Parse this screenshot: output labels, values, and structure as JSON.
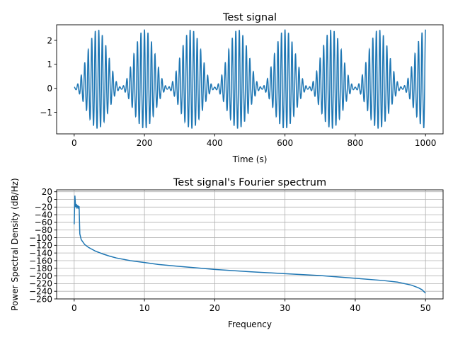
{
  "chart_data": [
    {
      "type": "line",
      "title": "Test signal",
      "xlabel": "Time (s)",
      "ylabel": "",
      "xlim": [
        -50,
        1050
      ],
      "ylim": [
        -1.9,
        2.65
      ],
      "xticks": [
        0,
        200,
        400,
        600,
        800,
        1000
      ],
      "yticks": [
        -1,
        0,
        1,
        2
      ],
      "ytick_labels": [
        "−1",
        "0",
        "1",
        "2"
      ],
      "grid": false,
      "line_color": "#1f77b4",
      "series": [
        {
          "x": [
            0,
            1000
          ],
          "description_values": {
            "carrier_period_s": 10,
            "envelope_period_s": 133.3,
            "envelope_max": 2.45,
            "envelope_min": 0.05,
            "trough_min": -1.68
          }
        }
      ]
    },
    {
      "type": "line",
      "title": "Test signal's Fourier spectrum",
      "xlabel": "Frequency",
      "ylabel": "Power Spectral Density (dB/Hz)",
      "xlim": [
        -2.5,
        52.5
      ],
      "ylim": [
        -260,
        25
      ],
      "xticks": [
        0,
        10,
        20,
        30,
        40,
        50
      ],
      "yticks": [
        -260,
        -240,
        -220,
        -200,
        -180,
        -160,
        -140,
        -120,
        -100,
        -80,
        -60,
        -40,
        -20,
        0,
        20
      ],
      "ytick_labels": [
        "−260",
        "−240",
        "−220",
        "−200",
        "−180",
        "−160",
        "−140",
        "−120",
        "−100",
        "−80",
        "−60",
        "−40",
        "−20",
        "0",
        "20"
      ],
      "grid": true,
      "line_color": "#1f77b4",
      "series": [
        {
          "x": [
            0,
            0.1,
            0.2,
            0.3,
            0.4,
            0.5,
            0.6,
            0.7,
            0.8,
            1,
            1.5,
            2,
            3,
            4,
            5,
            6,
            8,
            10,
            12,
            15,
            20,
            25,
            30,
            35,
            40,
            44,
            46,
            48,
            49,
            49.5,
            50
          ],
          "y": [
            -65,
            10,
            -20,
            -12,
            -24,
            -15,
            -22,
            -18,
            -90,
            -105,
            -118,
            -125,
            -135,
            -142,
            -148,
            -153,
            -160,
            -165,
            -170,
            -175,
            -183,
            -189,
            -194,
            -199,
            -206,
            -212,
            -216,
            -224,
            -231,
            -236,
            -245
          ]
        }
      ]
    }
  ]
}
